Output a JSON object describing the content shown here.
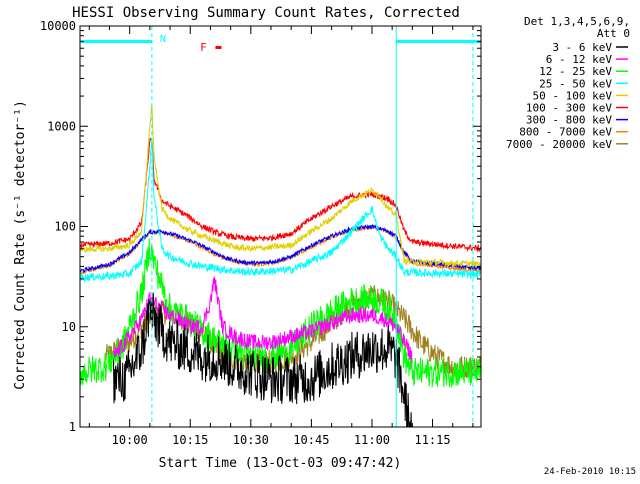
{
  "chart_data": {
    "type": "line",
    "title": "HESSI Observing Summary Count Rates, Corrected",
    "xlabel": "Start Time (13-Oct-03 09:47:42)",
    "ylabel": "Corrected Count Rate (s⁻¹ detector⁻¹)",
    "yscale": "log",
    "ylim": [
      1,
      10000
    ],
    "xlim": [
      "09:47:42",
      "11:27:00"
    ],
    "x_ticks": [
      "10:00",
      "10:15",
      "10:30",
      "10:45",
      "11:00",
      "11:15"
    ],
    "y_ticks": [
      "1",
      "10",
      "100",
      "1000",
      "10000"
    ],
    "legend": {
      "placement": "outside-right",
      "header": [
        "Det 1,3,4,5,6,9,",
        "Att 0"
      ]
    },
    "grid": false,
    "series": [
      {
        "name": "3 - 6 keV",
        "color": "#000000",
        "noise": 0.25,
        "x": [
          "09:56",
          "09:59",
          "10:03",
          "10:05",
          "10:06",
          "10:08",
          "10:10",
          "10:14",
          "10:18",
          "10:22",
          "10:26",
          "10:30",
          "10:35",
          "10:40",
          "10:45",
          "10:50",
          "10:55",
          "11:00",
          "11:04",
          "11:06",
          "11:08",
          "11:10"
        ],
        "y": [
          3,
          3,
          6,
          15,
          12,
          9,
          7,
          6,
          5,
          5,
          4,
          3.5,
          3,
          3,
          3,
          4,
          5,
          6,
          6,
          5,
          2,
          0.8
        ]
      },
      {
        "name": "6 - 12 keV",
        "color": "#ff00ff",
        "noise": 0.08,
        "x": [
          "09:56",
          "10:00",
          "10:03",
          "10:05",
          "10:07",
          "10:10",
          "10:15",
          "10:18",
          "10:20",
          "10:21",
          "10:23",
          "10:26",
          "10:30",
          "10:35",
          "10:40",
          "10:45",
          "10:50",
          "10:55",
          "11:00",
          "11:03",
          "11:06",
          "11:08",
          "11:10"
        ],
        "y": [
          5,
          8,
          12,
          19,
          16,
          13,
          10,
          10,
          18,
          30,
          10,
          8,
          7,
          7,
          8,
          9,
          11,
          13,
          13,
          12,
          10,
          7,
          5
        ]
      },
      {
        "name": "12 - 25 keV",
        "color": "#00ff00",
        "noise": 0.15,
        "x": [
          "09:47.8",
          "09:54",
          "09:58",
          "10:00",
          "10:03",
          "10:05",
          "10:06",
          "10:08",
          "10:10",
          "10:14",
          "10:18",
          "10:22",
          "10:26",
          "10:30",
          "10:35",
          "10:40",
          "10:45",
          "10:50",
          "10:55",
          "11:00",
          "11:03",
          "11:06",
          "11:08",
          "11:10",
          "11:27"
        ],
        "y": [
          3.5,
          4,
          6,
          10,
          22,
          65,
          45,
          25,
          15,
          12,
          9,
          7,
          6,
          5,
          5,
          6,
          10,
          14,
          18,
          19,
          17,
          12,
          5,
          3.5,
          3.5
        ]
      },
      {
        "name": "25 - 50 keV",
        "color": "#00ffff",
        "noise": 0.04,
        "x": [
          "09:47.8",
          "09:55",
          "10:00",
          "10:03",
          "10:05",
          "10:05.5",
          "10:06",
          "10:08",
          "10:10",
          "10:14",
          "10:18",
          "10:22",
          "10:26",
          "10:30",
          "10:35",
          "10:40",
          "10:45",
          "10:50",
          "10:55",
          "11:00",
          "11:02",
          "11:04",
          "11:06",
          "11:08",
          "11:27"
        ],
        "y": [
          31,
          32,
          34,
          45,
          400,
          800,
          200,
          60,
          50,
          44,
          40,
          38,
          36,
          35,
          36,
          37,
          45,
          55,
          90,
          150,
          80,
          60,
          50,
          35,
          33
        ]
      },
      {
        "name": "50 - 100 keV",
        "color": "#e0d000",
        "noise": 0.03,
        "x": [
          "09:47.8",
          "09:55",
          "10:00",
          "10:03",
          "10:05",
          "10:05.5",
          "10:06",
          "10:08",
          "10:10",
          "10:14",
          "10:18",
          "10:22",
          "10:26",
          "10:30",
          "10:35",
          "10:40",
          "10:45",
          "10:50",
          "10:55",
          "11:00",
          "11:02",
          "11:04",
          "11:06",
          "11:08",
          "11:27"
        ],
        "y": [
          59,
          60,
          65,
          90,
          1000,
          1700,
          500,
          150,
          120,
          95,
          80,
          70,
          62,
          60,
          62,
          65,
          90,
          120,
          180,
          230,
          200,
          150,
          130,
          45,
          42
        ]
      },
      {
        "name": "100 - 300 keV",
        "color": "#ff0000",
        "noise": 0.03,
        "x": [
          "09:47.8",
          "09:55",
          "10:00",
          "10:03",
          "10:05",
          "10:05.5",
          "10:06",
          "10:08",
          "10:10",
          "10:14",
          "10:18",
          "10:22",
          "10:26",
          "10:30",
          "10:35",
          "10:40",
          "10:45",
          "10:50",
          "10:55",
          "11:00",
          "11:04",
          "11:06",
          "11:08",
          "11:10",
          "11:27"
        ],
        "y": [
          65,
          68,
          75,
          110,
          700,
          750,
          300,
          180,
          160,
          130,
          100,
          85,
          78,
          75,
          77,
          85,
          120,
          160,
          200,
          210,
          190,
          160,
          90,
          70,
          60
        ]
      },
      {
        "name": "300 - 800 keV",
        "color": "#0000ff",
        "noise": 0.02,
        "x": [
          "09:47.8",
          "09:55",
          "10:00",
          "10:03",
          "10:05",
          "10:08",
          "10:12",
          "10:16",
          "10:20",
          "10:24",
          "10:28",
          "10:32",
          "10:36",
          "10:40",
          "10:45",
          "10:50",
          "10:55",
          "11:00",
          "11:04",
          "11:06",
          "11:08",
          "11:10",
          "11:27"
        ],
        "y": [
          36,
          42,
          55,
          75,
          88,
          90,
          80,
          70,
          58,
          48,
          44,
          43,
          45,
          50,
          65,
          80,
          95,
          100,
          90,
          80,
          55,
          45,
          38
        ]
      },
      {
        "name": "800 - 7000 keV",
        "color": "#ff8000",
        "noise": 0.02,
        "x": [
          "09:47.8",
          "09:55",
          "10:00",
          "10:03",
          "10:05",
          "10:08",
          "10:12",
          "10:16",
          "10:20",
          "10:24",
          "10:28",
          "10:32",
          "10:36",
          "10:40",
          "10:45",
          "10:50",
          "10:55",
          "11:00",
          "11:04",
          "11:06",
          "11:08",
          "11:10",
          "11:27"
        ],
        "y": [
          35,
          41,
          54,
          73,
          86,
          88,
          78,
          68,
          56,
          47,
          43,
          42,
          44,
          49,
          63,
          78,
          93,
          98,
          88,
          78,
          52,
          43,
          36
        ]
      },
      {
        "name": "7000 - 20000 keV",
        "color": "#a08020",
        "noise": 0.12,
        "x": [
          "09:54",
          "09:57",
          "10:00",
          "10:03",
          "10:05",
          "10:08",
          "10:12",
          "10:16",
          "10:20",
          "10:24",
          "10:28",
          "10:32",
          "10:36",
          "10:40",
          "10:45",
          "10:50",
          "10:55",
          "11:00",
          "11:04",
          "11:08",
          "11:12",
          "11:16",
          "11:20",
          "11:27"
        ],
        "y": [
          5,
          6,
          7,
          10,
          12,
          14,
          13,
          10,
          7,
          5,
          4.5,
          4.5,
          4.5,
          5,
          7,
          11,
          17,
          20,
          18,
          12,
          7,
          5,
          4,
          4
        ]
      }
    ],
    "annotations": {
      "night_label": "N",
      "flare_label": "F",
      "night_intervals": [
        [
          "09:47:42",
          "10:05:30"
        ],
        [
          "11:06:00",
          "11:27:00"
        ]
      ],
      "vertical_markers": [
        "10:05:30",
        "11:06:00",
        "11:25:00"
      ],
      "flare_interval": [
        "10:19:30",
        "10:21:00"
      ]
    }
  },
  "footer": {
    "timestamp": "24-Feb-2010 10:15"
  }
}
